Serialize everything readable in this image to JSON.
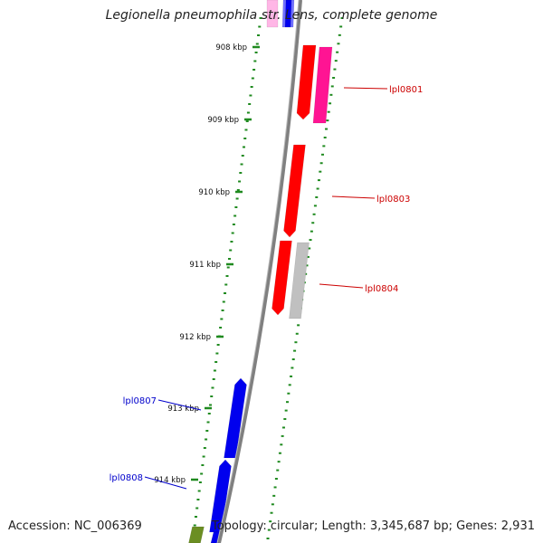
{
  "title": "Legionella pneumophila str. Lens, complete genome",
  "accession_text": "Accession: NC_006369",
  "topology_text": "Topology: circular; Length: 3,345,687 bp; Genes: 2,931",
  "colors": {
    "ticks": "#1f8a1f",
    "backbone": "#808080",
    "forward_gene": "#ff0000",
    "reverse_gene": "#0000ee",
    "magenta_gene": "#ff1493",
    "grey_gene": "#c0c0c0",
    "olive_gene": "#6b8e23",
    "forward_label": "#cc0000",
    "reverse_label": "#0000cc"
  },
  "ticks": [
    {
      "label": "908 kbp"
    },
    {
      "label": "909 kbp"
    },
    {
      "label": "910 kbp"
    },
    {
      "label": "911 kbp"
    },
    {
      "label": "912 kbp"
    },
    {
      "label": "913 kbp"
    },
    {
      "label": "914 kbp"
    }
  ],
  "gene_labels": [
    {
      "text": "lpl0801",
      "strand": "forward"
    },
    {
      "text": "lpl0803",
      "strand": "forward"
    },
    {
      "text": "lpl0804",
      "strand": "forward"
    },
    {
      "text": "lpl0807",
      "strand": "reverse"
    },
    {
      "text": "lpl0808",
      "strand": "reverse"
    }
  ]
}
